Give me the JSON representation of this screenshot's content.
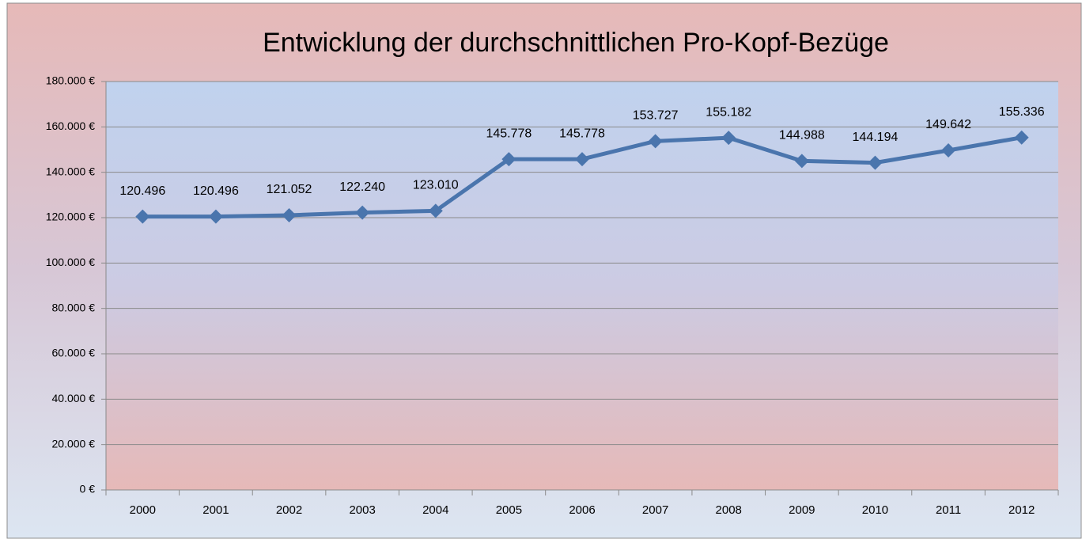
{
  "chart_data": {
    "type": "line",
    "title": "Entwicklung der durchschnittlichen Pro-Kopf-Bezüge",
    "categories": [
      "2000",
      "2001",
      "2002",
      "2003",
      "2004",
      "2005",
      "2006",
      "2007",
      "2008",
      "2009",
      "2010",
      "2011",
      "2012"
    ],
    "values": [
      120496,
      120496,
      121052,
      122240,
      123010,
      145778,
      145778,
      153727,
      155182,
      144988,
      144194,
      149642,
      155336
    ],
    "value_labels": [
      "120.496",
      "120.496",
      "121.052",
      "122.240",
      "123.010",
      "145.778",
      "145.778",
      "153.727",
      "155.182",
      "144.988",
      "144.194",
      "149.642",
      "155.336"
    ],
    "color": "#4a75ad",
    "ylim": [
      0,
      180000
    ],
    "yticks": [
      {
        "value": 0,
        "label": "0 €"
      },
      {
        "value": 20000,
        "label": "20.000 €"
      },
      {
        "value": 40000,
        "label": "40.000 €"
      },
      {
        "value": 60000,
        "label": "60.000 €"
      },
      {
        "value": 80000,
        "label": "80.000 €"
      },
      {
        "value": 100000,
        "label": "100.000 €"
      },
      {
        "value": 120000,
        "label": "120.000 €"
      },
      {
        "value": 140000,
        "label": "140.000 €"
      },
      {
        "value": 160000,
        "label": "160.000 €"
      },
      {
        "value": 180000,
        "label": "180.000 €"
      }
    ],
    "grid": true
  }
}
